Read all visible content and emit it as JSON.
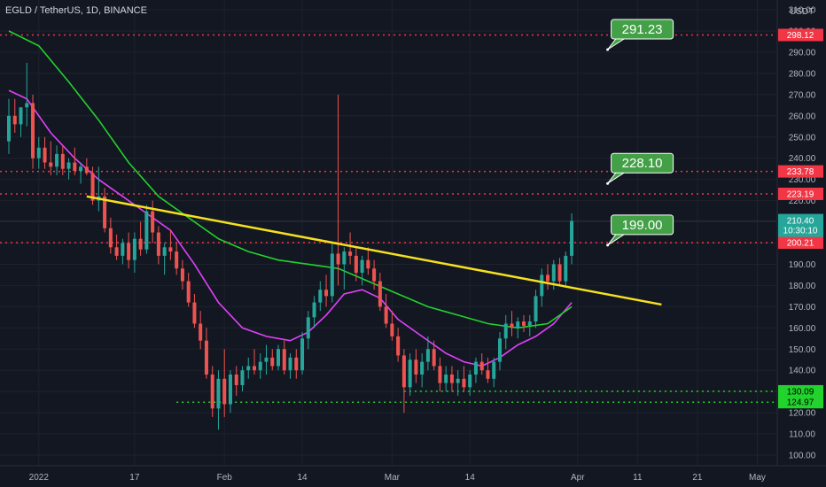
{
  "header": {
    "symbol": "EGLD / TetherUS, 1D, BINANCE",
    "currency": "USDT"
  },
  "colors": {
    "background": "#131722",
    "grid": "#1e222d",
    "up": "#26a69a",
    "down": "#ef5350",
    "ma_fast": "#e040fb",
    "ma_slow": "#22d22d",
    "trendline": "#f5e11e",
    "resistance": "#f23645",
    "support": "#22d22d",
    "callout": "#43a047",
    "axis_text": "#b2b5be"
  },
  "chart_data": {
    "type": "candlestick",
    "title": "EGLD / TetherUS, 1D, BINANCE",
    "y_unit": "USDT",
    "x_range": [
      "2021-12-27",
      "2022-05-03"
    ],
    "ylim": [
      94,
      316
    ],
    "y_ticks": [
      100,
      110,
      120,
      130,
      140,
      150,
      160,
      170,
      180,
      190,
      200,
      210,
      220,
      230,
      240,
      250,
      260,
      270,
      280,
      290,
      300,
      310
    ],
    "x_ticks": [
      {
        "label": "2022",
        "date": "2022-01-01"
      },
      {
        "label": "17",
        "date": "2022-01-17"
      },
      {
        "label": "Feb",
        "date": "2022-02-01"
      },
      {
        "label": "14",
        "date": "2022-02-14"
      },
      {
        "label": "Mar",
        "date": "2022-03-01"
      },
      {
        "label": "14",
        "date": "2022-03-14"
      },
      {
        "label": "Apr",
        "date": "2022-04-01"
      },
      {
        "label": "11",
        "date": "2022-04-11"
      },
      {
        "label": "21",
        "date": "2022-04-21"
      },
      {
        "label": "May",
        "date": "2022-05-01"
      }
    ],
    "candles": [
      {
        "date": "2021-12-27",
        "o": 248,
        "h": 268,
        "l": 242,
        "c": 260
      },
      {
        "date": "2021-12-28",
        "o": 260,
        "h": 268,
        "l": 252,
        "c": 256
      },
      {
        "date": "2021-12-29",
        "o": 256,
        "h": 262,
        "l": 250,
        "c": 264
      },
      {
        "date": "2021-12-30",
        "o": 264,
        "h": 285,
        "l": 255,
        "c": 266
      },
      {
        "date": "2021-12-31",
        "o": 266,
        "h": 270,
        "l": 235,
        "c": 240
      },
      {
        "date": "2022-01-01",
        "o": 240,
        "h": 250,
        "l": 235,
        "c": 245
      },
      {
        "date": "2022-01-02",
        "o": 245,
        "h": 250,
        "l": 235,
        "c": 238
      },
      {
        "date": "2022-01-03",
        "o": 238,
        "h": 248,
        "l": 232,
        "c": 236
      },
      {
        "date": "2022-01-04",
        "o": 236,
        "h": 246,
        "l": 232,
        "c": 242
      },
      {
        "date": "2022-01-05",
        "o": 242,
        "h": 246,
        "l": 232,
        "c": 235
      },
      {
        "date": "2022-01-06",
        "o": 235,
        "h": 240,
        "l": 230,
        "c": 238
      },
      {
        "date": "2022-01-07",
        "o": 238,
        "h": 245,
        "l": 232,
        "c": 234
      },
      {
        "date": "2022-01-08",
        "o": 234,
        "h": 238,
        "l": 228,
        "c": 236
      },
      {
        "date": "2022-01-09",
        "o": 236,
        "h": 240,
        "l": 232,
        "c": 233
      },
      {
        "date": "2022-01-10",
        "o": 233,
        "h": 236,
        "l": 218,
        "c": 220
      },
      {
        "date": "2022-01-11",
        "o": 220,
        "h": 236,
        "l": 215,
        "c": 222
      },
      {
        "date": "2022-01-12",
        "o": 222,
        "h": 226,
        "l": 205,
        "c": 207
      },
      {
        "date": "2022-01-13",
        "o": 207,
        "h": 212,
        "l": 195,
        "c": 198
      },
      {
        "date": "2022-01-14",
        "o": 198,
        "h": 204,
        "l": 192,
        "c": 194
      },
      {
        "date": "2022-01-15",
        "o": 194,
        "h": 202,
        "l": 190,
        "c": 200
      },
      {
        "date": "2022-01-16",
        "o": 200,
        "h": 205,
        "l": 188,
        "c": 192
      },
      {
        "date": "2022-01-17",
        "o": 192,
        "h": 205,
        "l": 186,
        "c": 202
      },
      {
        "date": "2022-01-18",
        "o": 202,
        "h": 210,
        "l": 194,
        "c": 197
      },
      {
        "date": "2022-01-19",
        "o": 197,
        "h": 218,
        "l": 195,
        "c": 215
      },
      {
        "date": "2022-01-20",
        "o": 215,
        "h": 220,
        "l": 200,
        "c": 205
      },
      {
        "date": "2022-01-21",
        "o": 205,
        "h": 208,
        "l": 190,
        "c": 194
      },
      {
        "date": "2022-01-22",
        "o": 194,
        "h": 200,
        "l": 185,
        "c": 198
      },
      {
        "date": "2022-01-23",
        "o": 198,
        "h": 206,
        "l": 192,
        "c": 196
      },
      {
        "date": "2022-01-24",
        "o": 196,
        "h": 200,
        "l": 185,
        "c": 188
      },
      {
        "date": "2022-01-25",
        "o": 188,
        "h": 192,
        "l": 178,
        "c": 182
      },
      {
        "date": "2022-01-26",
        "o": 182,
        "h": 186,
        "l": 170,
        "c": 172
      },
      {
        "date": "2022-01-27",
        "o": 172,
        "h": 176,
        "l": 160,
        "c": 162
      },
      {
        "date": "2022-01-28",
        "o": 162,
        "h": 168,
        "l": 150,
        "c": 154
      },
      {
        "date": "2022-01-29",
        "o": 154,
        "h": 160,
        "l": 136,
        "c": 138
      },
      {
        "date": "2022-01-30",
        "o": 138,
        "h": 142,
        "l": 118,
        "c": 122
      },
      {
        "date": "2022-01-31",
        "o": 122,
        "h": 140,
        "l": 112,
        "c": 136
      },
      {
        "date": "2022-02-01",
        "o": 136,
        "h": 150,
        "l": 118,
        "c": 124
      },
      {
        "date": "2022-02-02",
        "o": 124,
        "h": 140,
        "l": 120,
        "c": 138
      },
      {
        "date": "2022-02-03",
        "o": 138,
        "h": 142,
        "l": 128,
        "c": 133
      },
      {
        "date": "2022-02-04",
        "o": 133,
        "h": 142,
        "l": 130,
        "c": 140
      },
      {
        "date": "2022-02-05",
        "o": 140,
        "h": 146,
        "l": 136,
        "c": 142
      },
      {
        "date": "2022-02-06",
        "o": 142,
        "h": 150,
        "l": 138,
        "c": 140
      },
      {
        "date": "2022-02-07",
        "o": 140,
        "h": 148,
        "l": 136,
        "c": 144
      },
      {
        "date": "2022-02-08",
        "o": 144,
        "h": 152,
        "l": 138,
        "c": 146
      },
      {
        "date": "2022-02-09",
        "o": 146,
        "h": 150,
        "l": 140,
        "c": 142
      },
      {
        "date": "2022-02-10",
        "o": 142,
        "h": 152,
        "l": 140,
        "c": 150
      },
      {
        "date": "2022-02-11",
        "o": 150,
        "h": 154,
        "l": 138,
        "c": 140
      },
      {
        "date": "2022-02-12",
        "o": 140,
        "h": 148,
        "l": 136,
        "c": 146
      },
      {
        "date": "2022-02-13",
        "o": 146,
        "h": 150,
        "l": 136,
        "c": 140
      },
      {
        "date": "2022-02-14",
        "o": 140,
        "h": 158,
        "l": 138,
        "c": 155
      },
      {
        "date": "2022-02-15",
        "o": 155,
        "h": 168,
        "l": 150,
        "c": 165
      },
      {
        "date": "2022-02-16",
        "o": 165,
        "h": 175,
        "l": 160,
        "c": 172
      },
      {
        "date": "2022-02-17",
        "o": 172,
        "h": 182,
        "l": 168,
        "c": 178
      },
      {
        "date": "2022-02-18",
        "o": 178,
        "h": 185,
        "l": 170,
        "c": 175
      },
      {
        "date": "2022-02-19",
        "o": 175,
        "h": 200,
        "l": 172,
        "c": 195
      },
      {
        "date": "2022-02-20",
        "o": 195,
        "h": 270,
        "l": 180,
        "c": 190
      },
      {
        "date": "2022-02-21",
        "o": 190,
        "h": 198,
        "l": 178,
        "c": 196
      },
      {
        "date": "2022-02-22",
        "o": 196,
        "h": 205,
        "l": 190,
        "c": 194
      },
      {
        "date": "2022-02-23",
        "o": 194,
        "h": 198,
        "l": 182,
        "c": 186
      },
      {
        "date": "2022-02-24",
        "o": 186,
        "h": 194,
        "l": 180,
        "c": 192
      },
      {
        "date": "2022-02-25",
        "o": 192,
        "h": 198,
        "l": 185,
        "c": 188
      },
      {
        "date": "2022-02-26",
        "o": 188,
        "h": 192,
        "l": 178,
        "c": 182
      },
      {
        "date": "2022-02-27",
        "o": 182,
        "h": 186,
        "l": 168,
        "c": 170
      },
      {
        "date": "2022-02-28",
        "o": 170,
        "h": 176,
        "l": 160,
        "c": 162
      },
      {
        "date": "2022-03-01",
        "o": 162,
        "h": 168,
        "l": 154,
        "c": 156
      },
      {
        "date": "2022-03-02",
        "o": 156,
        "h": 160,
        "l": 144,
        "c": 147
      },
      {
        "date": "2022-03-03",
        "o": 147,
        "h": 150,
        "l": 120,
        "c": 132
      },
      {
        "date": "2022-03-04",
        "o": 132,
        "h": 148,
        "l": 128,
        "c": 145
      },
      {
        "date": "2022-03-05",
        "o": 145,
        "h": 150,
        "l": 134,
        "c": 138
      },
      {
        "date": "2022-03-06",
        "o": 138,
        "h": 148,
        "l": 132,
        "c": 144
      },
      {
        "date": "2022-03-07",
        "o": 144,
        "h": 156,
        "l": 140,
        "c": 150
      },
      {
        "date": "2022-03-08",
        "o": 150,
        "h": 154,
        "l": 140,
        "c": 142
      },
      {
        "date": "2022-03-09",
        "o": 142,
        "h": 146,
        "l": 130,
        "c": 134
      },
      {
        "date": "2022-03-10",
        "o": 134,
        "h": 142,
        "l": 130,
        "c": 138
      },
      {
        "date": "2022-03-11",
        "o": 138,
        "h": 142,
        "l": 130,
        "c": 134
      },
      {
        "date": "2022-03-12",
        "o": 134,
        "h": 140,
        "l": 128,
        "c": 136
      },
      {
        "date": "2022-03-13",
        "o": 136,
        "h": 142,
        "l": 130,
        "c": 132
      },
      {
        "date": "2022-03-14",
        "o": 132,
        "h": 140,
        "l": 128,
        "c": 138
      },
      {
        "date": "2022-03-15",
        "o": 138,
        "h": 146,
        "l": 134,
        "c": 144
      },
      {
        "date": "2022-03-16",
        "o": 144,
        "h": 148,
        "l": 138,
        "c": 140
      },
      {
        "date": "2022-03-17",
        "o": 140,
        "h": 146,
        "l": 134,
        "c": 136
      },
      {
        "date": "2022-03-18",
        "o": 136,
        "h": 146,
        "l": 132,
        "c": 144
      },
      {
        "date": "2022-03-19",
        "o": 144,
        "h": 158,
        "l": 140,
        "c": 155
      },
      {
        "date": "2022-03-20",
        "o": 155,
        "h": 166,
        "l": 150,
        "c": 162
      },
      {
        "date": "2022-03-21",
        "o": 162,
        "h": 168,
        "l": 156,
        "c": 160
      },
      {
        "date": "2022-03-22",
        "o": 160,
        "h": 165,
        "l": 155,
        "c": 163
      },
      {
        "date": "2022-03-23",
        "o": 163,
        "h": 166,
        "l": 158,
        "c": 161
      },
      {
        "date": "2022-03-24",
        "o": 161,
        "h": 166,
        "l": 156,
        "c": 163
      },
      {
        "date": "2022-03-25",
        "o": 163,
        "h": 178,
        "l": 160,
        "c": 175
      },
      {
        "date": "2022-03-26",
        "o": 175,
        "h": 188,
        "l": 170,
        "c": 185
      },
      {
        "date": "2022-03-27",
        "o": 185,
        "h": 190,
        "l": 178,
        "c": 182
      },
      {
        "date": "2022-03-28",
        "o": 182,
        "h": 192,
        "l": 178,
        "c": 190
      },
      {
        "date": "2022-03-29",
        "o": 190,
        "h": 193,
        "l": 180,
        "c": 182
      },
      {
        "date": "2022-03-30",
        "o": 182,
        "h": 196,
        "l": 180,
        "c": 194
      },
      {
        "date": "2022-03-31",
        "o": 194,
        "h": 214,
        "l": 190,
        "c": 210.4
      }
    ],
    "series": [
      {
        "type": "line",
        "points": [
          [
            "2021-12-27",
            272
          ],
          [
            "2021-12-30",
            268
          ],
          [
            "2022-01-03",
            252
          ],
          [
            "2022-01-07",
            240
          ],
          [
            "2022-01-11",
            230
          ],
          [
            "2022-01-15",
            222
          ],
          [
            "2022-01-19",
            214
          ],
          [
            "2022-01-23",
            206
          ],
          [
            "2022-01-27",
            190
          ],
          [
            "2022-01-31",
            172
          ],
          [
            "2022-02-04",
            160
          ],
          [
            "2022-02-08",
            156
          ],
          [
            "2022-02-12",
            154
          ],
          [
            "2022-02-15",
            158
          ],
          [
            "2022-02-18",
            166
          ],
          [
            "2022-02-21",
            176
          ],
          [
            "2022-02-24",
            178
          ],
          [
            "2022-02-27",
            174
          ],
          [
            "2022-03-02",
            164
          ],
          [
            "2022-03-06",
            156
          ],
          [
            "2022-03-10",
            148
          ],
          [
            "2022-03-13",
            144
          ],
          [
            "2022-03-16",
            142
          ],
          [
            "2022-03-19",
            146
          ],
          [
            "2022-03-22",
            152
          ],
          [
            "2022-03-25",
            156
          ],
          [
            "2022-03-28",
            162
          ],
          [
            "2022-03-31",
            172
          ]
        ]
      },
      {
        "type": "line",
        "points": [
          [
            "2021-12-27",
            300
          ],
          [
            "2022-01-01",
            293
          ],
          [
            "2022-01-06",
            276
          ],
          [
            "2022-01-11",
            258
          ],
          [
            "2022-01-16",
            238
          ],
          [
            "2022-01-21",
            222
          ],
          [
            "2022-01-26",
            212
          ],
          [
            "2022-01-31",
            202
          ],
          [
            "2022-02-05",
            196
          ],
          [
            "2022-02-10",
            192
          ],
          [
            "2022-02-15",
            190
          ],
          [
            "2022-02-20",
            188
          ],
          [
            "2022-02-25",
            182
          ],
          [
            "2022-03-02",
            176
          ],
          [
            "2022-03-07",
            170
          ],
          [
            "2022-03-12",
            166
          ],
          [
            "2022-03-17",
            162
          ],
          [
            "2022-03-22",
            160
          ],
          [
            "2022-03-27",
            162
          ],
          [
            "2022-03-31",
            170
          ]
        ]
      }
    ],
    "trendline": {
      "start": [
        "2022-01-09",
        222
      ],
      "end": [
        "2022-04-15",
        171
      ]
    },
    "horizontal_lines": [
      {
        "label": "298.12",
        "value": 298.12,
        "kind": "resistance"
      },
      {
        "label": "233.78",
        "value": 233.78,
        "kind": "resistance"
      },
      {
        "label": "223.19",
        "value": 223.19,
        "kind": "resistance"
      },
      {
        "label": "200.21",
        "value": 200.21,
        "kind": "resistance"
      },
      {
        "label": "130.09",
        "value": 130.09,
        "kind": "support",
        "start": "2022-03-03"
      },
      {
        "label": "124.97",
        "value": 124.97,
        "kind": "support",
        "start": "2022-01-24"
      }
    ],
    "last_price": {
      "label": "210.40",
      "countdown": "10:30:10",
      "value": 210.4
    },
    "annotations": [
      {
        "text": "291.23",
        "date": "2022-04-06",
        "value": 291.23
      },
      {
        "text": "228.10",
        "date": "2022-04-06",
        "value": 228.1
      },
      {
        "text": "199.00",
        "date": "2022-04-06",
        "value": 199.0
      }
    ]
  }
}
